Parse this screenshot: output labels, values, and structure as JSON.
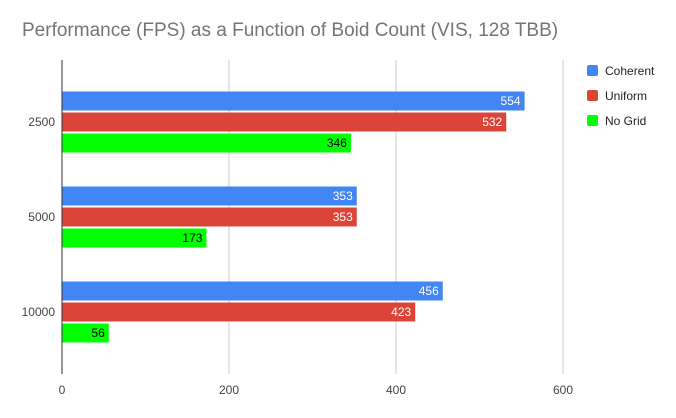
{
  "chart_data": {
    "type": "bar",
    "orientation": "horizontal",
    "title": "Performance (FPS) as a Function of Boid Count (VIS, 128 TBB)",
    "xlabel": "",
    "ylabel": "",
    "categories": [
      "2500",
      "5000",
      "10000"
    ],
    "series": [
      {
        "name": "Coherent",
        "color": "#4285f4",
        "values": [
          554,
          353,
          456
        ]
      },
      {
        "name": "Uniform",
        "color": "#db4437",
        "values": [
          532,
          353,
          423
        ]
      },
      {
        "name": "No Grid",
        "color": "#00ff00",
        "values": [
          346,
          173,
          56
        ]
      }
    ],
    "xlim": [
      0,
      600
    ],
    "xticks": [
      0,
      200,
      400,
      600
    ],
    "grid": true,
    "data_labels": true,
    "legend_position": "right"
  }
}
